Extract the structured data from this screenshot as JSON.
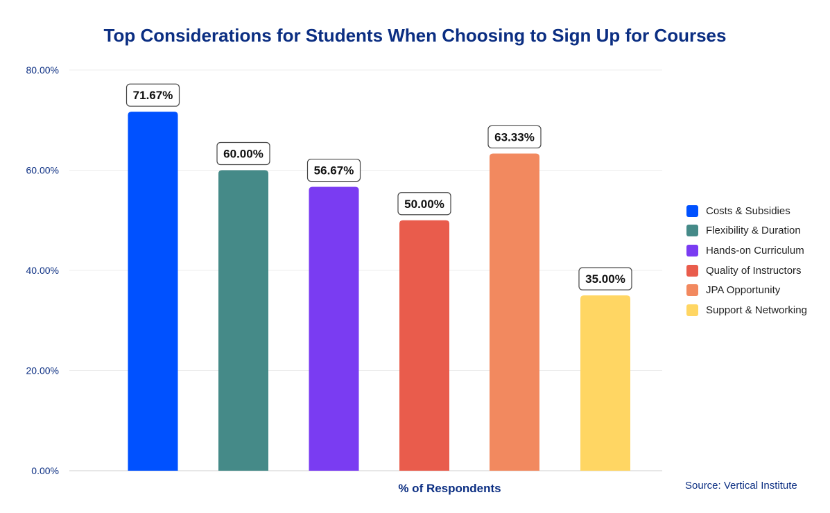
{
  "chart_data": {
    "type": "bar",
    "title": "Top Considerations for Students When Choosing to Sign Up for Courses",
    "xlabel": "% of Respondents",
    "ylabel": "",
    "ylim": [
      0,
      80
    ],
    "yticks": [
      "0.00%",
      "20.00%",
      "40.00%",
      "60.00%",
      "80.00%"
    ],
    "ytick_values": [
      0,
      20,
      40,
      60,
      80
    ],
    "categories": [
      "Costs & Subsidies",
      "Flexibility & Duration",
      "Hands-on Curriculum",
      "Quality of Instructors",
      "JPA Opportunity",
      "Support & Networking"
    ],
    "values": [
      71.67,
      60.0,
      56.67,
      50.0,
      63.33,
      35.0
    ],
    "value_labels": [
      "71.67%",
      "60.00%",
      "56.67%",
      "50.00%",
      "63.33%",
      "35.00%"
    ],
    "colors": [
      "#0051ff",
      "#458a88",
      "#7a3cf2",
      "#e95c4c",
      "#f2895f",
      "#ffd663"
    ],
    "grid": true,
    "legend_position": "right",
    "source": "Source: Vertical Institute"
  }
}
